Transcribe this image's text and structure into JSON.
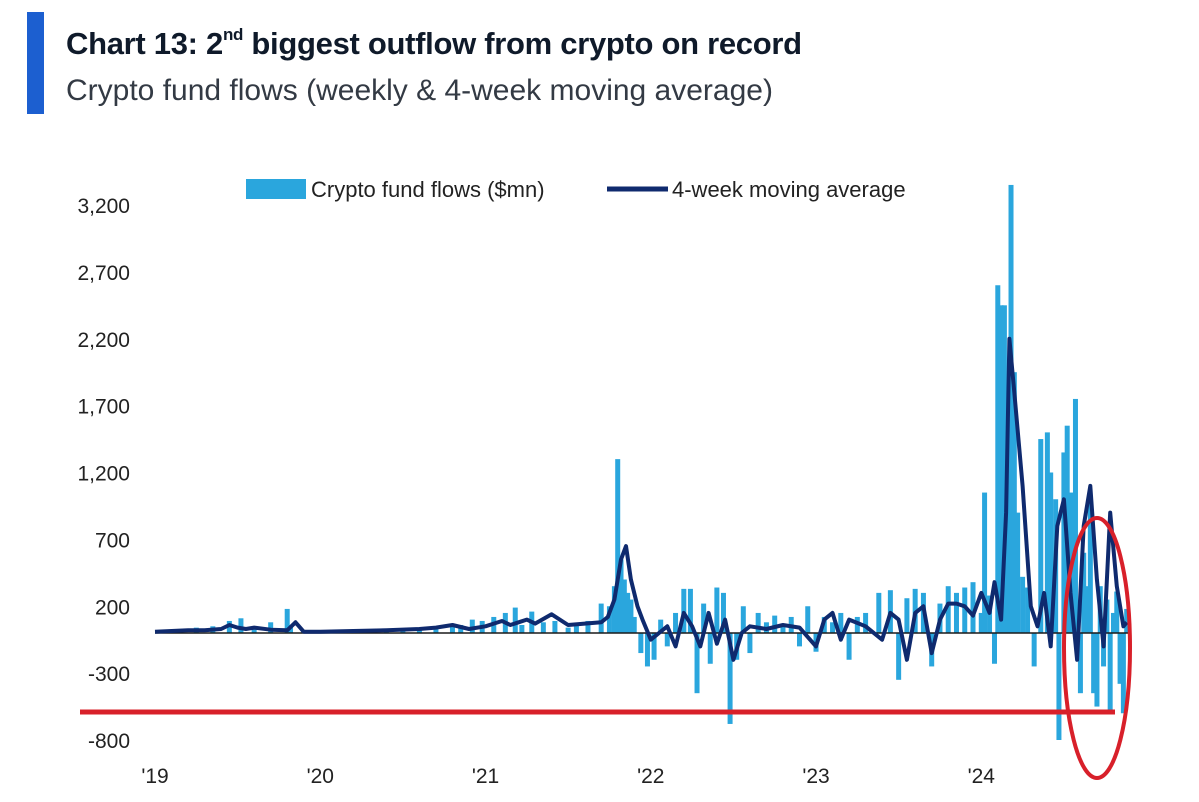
{
  "header": {
    "title_prefix": "Chart 13: 2",
    "title_sup": "nd",
    "title_suffix": " biggest outflow from crypto on record",
    "subtitle": "Crypto fund flows (weekly & 4-week moving average)"
  },
  "colors": {
    "accent": "#1c5fd0",
    "bars": "#2aa6dd",
    "moving_average": "#0f2a6e",
    "zero_line": "#1a1a1a",
    "annotation": "#d8202a"
  },
  "chart_data": {
    "type": "bar",
    "xlabel": "",
    "ylabel": "",
    "ylim": [
      -800,
      3700
    ],
    "yticks": [
      3200,
      2700,
      2200,
      1700,
      1200,
      700,
      200,
      -300,
      -800
    ],
    "ytick_labels": [
      "3,200",
      "2,700",
      "2,200",
      "1,700",
      "1,200",
      "700",
      "200",
      "-300",
      "-800"
    ],
    "xlim": [
      2019.0,
      2024.9
    ],
    "xticks": [
      2019,
      2020,
      2021,
      2022,
      2023,
      2024
    ],
    "xtick_labels": [
      "'19",
      "'20",
      "'21",
      "'22",
      "'23",
      "'24"
    ],
    "legend": {
      "placement": "top-center"
    },
    "grid": false,
    "series": [
      {
        "name": "Crypto fund flows ($mn)",
        "style": "bar",
        "x": [
          2019.05,
          2019.15,
          2019.25,
          2019.35,
          2019.45,
          2019.52,
          2019.6,
          2019.7,
          2019.8,
          2019.82,
          2019.9,
          2020.0,
          2020.1,
          2020.2,
          2020.3,
          2020.4,
          2020.5,
          2020.6,
          2020.7,
          2020.8,
          2020.85,
          2020.92,
          2020.98,
          2021.05,
          2021.12,
          2021.18,
          2021.22,
          2021.28,
          2021.35,
          2021.42,
          2021.5,
          2021.55,
          2021.62,
          2021.7,
          2021.75,
          2021.78,
          2021.8,
          2021.82,
          2021.84,
          2021.86,
          2021.88,
          2021.9,
          2021.94,
          2021.98,
          2022.02,
          2022.06,
          2022.1,
          2022.15,
          2022.2,
          2022.24,
          2022.28,
          2022.32,
          2022.36,
          2022.4,
          2022.44,
          2022.48,
          2022.52,
          2022.56,
          2022.6,
          2022.65,
          2022.7,
          2022.75,
          2022.8,
          2022.85,
          2022.9,
          2022.95,
          2023.0,
          2023.05,
          2023.1,
          2023.15,
          2023.2,
          2023.25,
          2023.3,
          2023.38,
          2023.45,
          2023.5,
          2023.55,
          2023.6,
          2023.65,
          2023.7,
          2023.75,
          2023.8,
          2023.85,
          2023.9,
          2023.95,
          2024.0,
          2024.02,
          2024.05,
          2024.08,
          2024.1,
          2024.12,
          2024.14,
          2024.16,
          2024.18,
          2024.2,
          2024.22,
          2024.25,
          2024.28,
          2024.32,
          2024.36,
          2024.4,
          2024.42,
          2024.45,
          2024.47,
          2024.5,
          2024.52,
          2024.54,
          2024.57,
          2024.6,
          2024.62,
          2024.64,
          2024.66,
          2024.68,
          2024.7,
          2024.72,
          2024.74,
          2024.76,
          2024.78,
          2024.8,
          2024.82,
          2024.84,
          2024.86,
          2024.88
        ],
        "values": [
          20,
          30,
          40,
          50,
          90,
          110,
          40,
          80,
          180,
          60,
          20,
          10,
          15,
          20,
          25,
          30,
          30,
          25,
          40,
          70,
          60,
          100,
          90,
          120,
          150,
          190,
          60,
          160,
          80,
          90,
          40,
          60,
          90,
          220,
          200,
          350,
          1300,
          550,
          400,
          300,
          250,
          120,
          -150,
          -250,
          -200,
          100,
          -100,
          150,
          330,
          330,
          -450,
          220,
          -230,
          340,
          300,
          -680,
          -200,
          200,
          -150,
          150,
          80,
          130,
          60,
          120,
          -100,
          200,
          -140,
          120,
          80,
          150,
          -200,
          120,
          150,
          300,
          320,
          -350,
          260,
          330,
          300,
          -250,
          220,
          350,
          300,
          340,
          380,
          150,
          1050,
          280,
          -230,
          2600,
          2450,
          2450,
          1500,
          3350,
          1950,
          900,
          420,
          340,
          -250,
          1450,
          1500,
          1200,
          1000,
          -800,
          1350,
          1550,
          1050,
          1750,
          -450,
          600,
          350,
          1000,
          -450,
          -550,
          350,
          -250,
          250,
          -600,
          150,
          310,
          -380,
          -600,
          180
        ]
      },
      {
        "name": "4-week moving average",
        "style": "line",
        "x": [
          2019.0,
          2019.1,
          2019.2,
          2019.3,
          2019.4,
          2019.45,
          2019.5,
          2019.55,
          2019.6,
          2019.7,
          2019.8,
          2019.85,
          2019.9,
          2020.0,
          2020.2,
          2020.4,
          2020.6,
          2020.7,
          2020.8,
          2020.9,
          2021.0,
          2021.05,
          2021.1,
          2021.15,
          2021.2,
          2021.25,
          2021.3,
          2021.4,
          2021.5,
          2021.6,
          2021.7,
          2021.74,
          2021.78,
          2021.82,
          2021.85,
          2021.88,
          2021.92,
          2021.95,
          2022.0,
          2022.05,
          2022.1,
          2022.15,
          2022.2,
          2022.25,
          2022.3,
          2022.35,
          2022.4,
          2022.45,
          2022.5,
          2022.55,
          2022.6,
          2022.7,
          2022.8,
          2022.9,
          2023.0,
          2023.05,
          2023.1,
          2023.15,
          2023.2,
          2023.3,
          2023.4,
          2023.45,
          2023.5,
          2023.55,
          2023.6,
          2023.65,
          2023.7,
          2023.75,
          2023.8,
          2023.85,
          2023.9,
          2023.95,
          2024.0,
          2024.05,
          2024.08,
          2024.12,
          2024.15,
          2024.17,
          2024.2,
          2024.25,
          2024.3,
          2024.34,
          2024.38,
          2024.42,
          2024.46,
          2024.5,
          2024.54,
          2024.58,
          2024.62,
          2024.66,
          2024.7,
          2024.74,
          2024.78,
          2024.82,
          2024.86,
          2024.88
        ],
        "values": [
          10,
          15,
          20,
          20,
          30,
          60,
          40,
          30,
          40,
          25,
          20,
          80,
          10,
          10,
          15,
          20,
          30,
          40,
          60,
          30,
          50,
          70,
          90,
          60,
          80,
          100,
          70,
          140,
          60,
          70,
          80,
          120,
          250,
          550,
          650,
          400,
          200,
          100,
          -50,
          0,
          50,
          -100,
          150,
          50,
          -100,
          150,
          -80,
          100,
          -200,
          0,
          50,
          30,
          60,
          40,
          -100,
          100,
          150,
          -50,
          100,
          50,
          -50,
          150,
          100,
          -200,
          150,
          200,
          -150,
          100,
          220,
          220,
          200,
          130,
          300,
          150,
          380,
          100,
          900,
          2200,
          1800,
          1100,
          200,
          50,
          300,
          -100,
          800,
          1000,
          300,
          -200,
          800,
          1100,
          400,
          -100,
          900,
          350,
          50,
          80
        ]
      }
    ],
    "annotations": [
      {
        "type": "horizontal-line",
        "y": -580,
        "color": "#d8202a"
      },
      {
        "type": "ellipse",
        "x_center": 2024.8,
        "y_center": 100,
        "color": "#d8202a"
      }
    ]
  }
}
